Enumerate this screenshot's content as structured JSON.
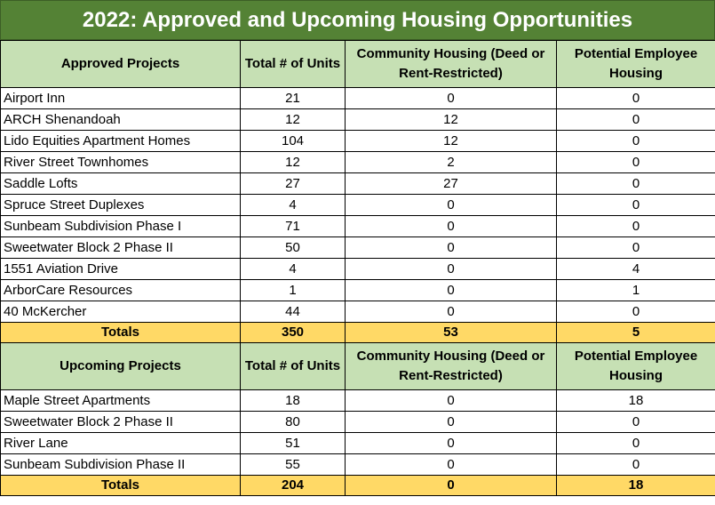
{
  "title": "2022: Approved and Upcoming Housing Opportunities",
  "approved": {
    "headers": [
      "Approved Projects",
      "Total # of Units",
      "Community Housing (Deed or Rent-Restricted)",
      "Potential Employee Housing"
    ],
    "rows": [
      {
        "name": "Airport Inn",
        "units": "21",
        "community": "0",
        "employee": "0"
      },
      {
        "name": "ARCH Shenandoah",
        "units": "12",
        "community": "12",
        "employee": "0"
      },
      {
        "name": "Lido Equities Apartment Homes",
        "units": "104",
        "community": "12",
        "employee": "0"
      },
      {
        "name": "River Street Townhomes",
        "units": "12",
        "community": "2",
        "employee": "0"
      },
      {
        "name": "Saddle Lofts",
        "units": "27",
        "community": "27",
        "employee": "0"
      },
      {
        "name": "Spruce Street Duplexes",
        "units": "4",
        "community": "0",
        "employee": "0"
      },
      {
        "name": "Sunbeam Subdivision Phase I",
        "units": "71",
        "community": "0",
        "employee": "0"
      },
      {
        "name": "Sweetwater Block 2 Phase II",
        "units": "50",
        "community": "0",
        "employee": "0"
      },
      {
        "name": "1551 Aviation Drive",
        "units": "4",
        "community": "0",
        "employee": "4"
      },
      {
        "name": "ArborCare Resources",
        "units": "1",
        "community": "0",
        "employee": "1"
      },
      {
        "name": "40 McKercher",
        "units": "44",
        "community": "0",
        "employee": "0"
      }
    ],
    "totals": {
      "label": "Totals",
      "units": "350",
      "community": "53",
      "employee": "5"
    }
  },
  "upcoming": {
    "headers": [
      "Upcoming Projects",
      "Total # of Units",
      "Community Housing (Deed or Rent-Restricted)",
      "Potential Employee Housing"
    ],
    "rows": [
      {
        "name": "Maple Street Apartments",
        "units": "18",
        "community": "0",
        "employee": "18"
      },
      {
        "name": "Sweetwater Block 2 Phase II",
        "units": "80",
        "community": "0",
        "employee": "0"
      },
      {
        "name": "River Lane",
        "units": "51",
        "community": "0",
        "employee": "0"
      },
      {
        "name": "Sunbeam Subdivision Phase II",
        "units": "55",
        "community": "0",
        "employee": "0"
      }
    ],
    "totals": {
      "label": "Totals",
      "units": "204",
      "community": "0",
      "employee": "18"
    }
  },
  "colors": {
    "title_bg": "#548235",
    "header_bg": "#c6e0b4",
    "totals_bg": "#ffd966"
  }
}
